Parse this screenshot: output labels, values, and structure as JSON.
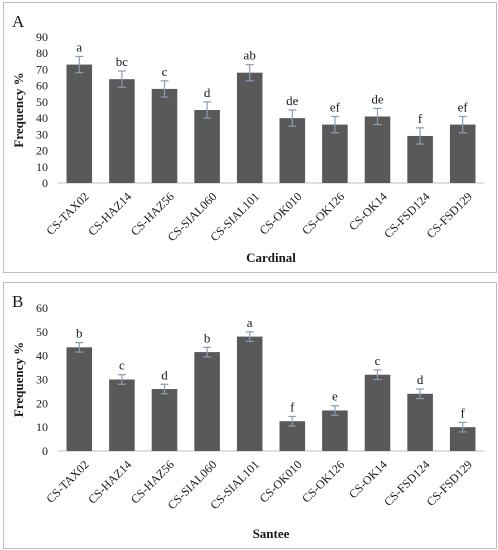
{
  "figure": {
    "panels": [
      {
        "label": "A"
      },
      {
        "label": "B"
      }
    ]
  },
  "chart_data": [
    {
      "type": "bar",
      "panel": "A",
      "title": "",
      "xlabel": "Cardinal",
      "ylabel": "Frequency %",
      "ylim": [
        0,
        90
      ],
      "yticks": [
        0,
        10,
        20,
        30,
        40,
        50,
        60,
        70,
        80,
        90
      ],
      "categories": [
        "CS-TAX02",
        "CS-HAZ14",
        "CS-HAZ56",
        "CS-SIAL060",
        "CS-SIAL101",
        "CS-OK010",
        "CS-OK126",
        "CS-OK14",
        "CS-FSD124",
        "CS-FSD129"
      ],
      "values": [
        73,
        64,
        58,
        45,
        68,
        40,
        36,
        41,
        29,
        36
      ],
      "errors": [
        5,
        5,
        5,
        5,
        5,
        5,
        5,
        5,
        5,
        5
      ],
      "letters": [
        "a",
        "bc",
        "c",
        "d",
        "ab",
        "de",
        "ef",
        "de",
        "f",
        "ef"
      ],
      "bar_color": "#595959",
      "error_color": "#8a9bb5",
      "grid": false
    },
    {
      "type": "bar",
      "panel": "B",
      "title": "",
      "xlabel": "Santee",
      "ylabel": "Frequency %",
      "ylim": [
        0,
        60
      ],
      "yticks": [
        0,
        10,
        20,
        30,
        40,
        50,
        60
      ],
      "categories": [
        "CS-TAX02",
        "CS-HAZ14",
        "CS-HAZ56",
        "CS-SIAL060",
        "CS-SIAL101",
        "CS-OK010",
        "CS-OK126",
        "CS-OK14",
        "CS-FSD124",
        "CS-FSD129"
      ],
      "values": [
        43.5,
        30,
        26,
        41.5,
        48,
        12.5,
        17,
        32,
        24,
        10
      ],
      "errors": [
        2,
        2,
        2,
        2,
        2,
        2,
        2,
        2,
        2,
        2
      ],
      "letters": [
        "b",
        "c",
        "d",
        "b",
        "a",
        "f",
        "e",
        "c",
        "d",
        "f"
      ],
      "bar_color": "#595959",
      "error_color": "#8a9bb5",
      "grid": false
    }
  ]
}
